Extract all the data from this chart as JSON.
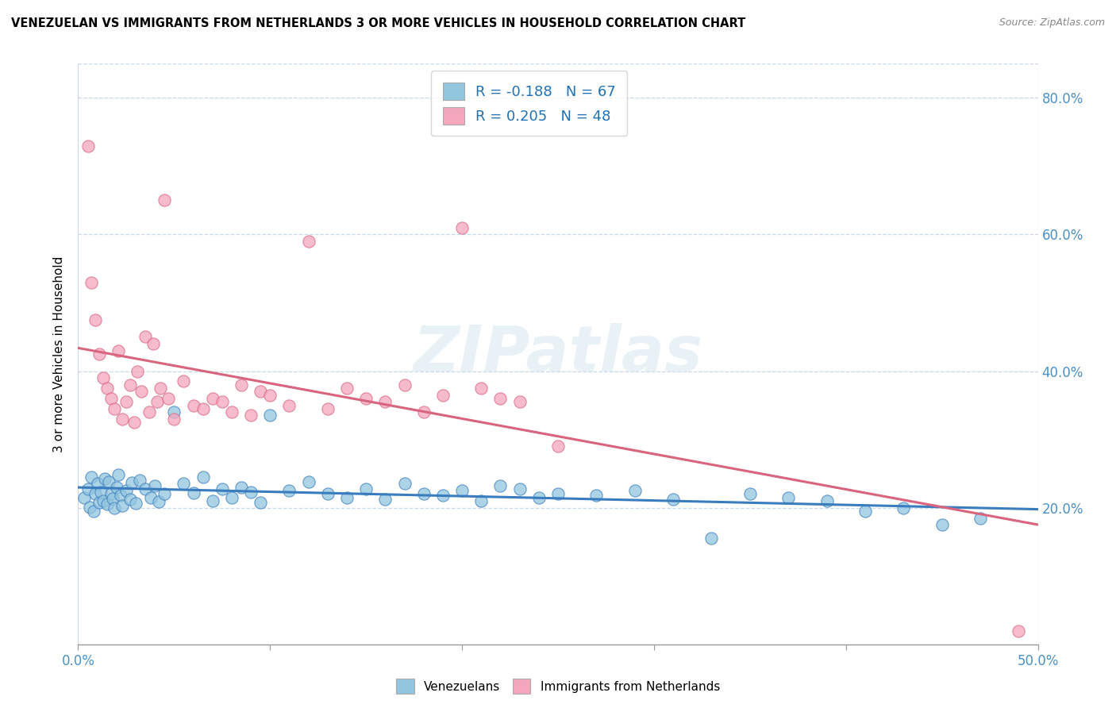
{
  "title": "VENEZUELAN VS IMMIGRANTS FROM NETHERLANDS 3 OR MORE VEHICLES IN HOUSEHOLD CORRELATION CHART",
  "source": "Source: ZipAtlas.com",
  "ylabel": "3 or more Vehicles in Household",
  "legend_label1": "Venezuelans",
  "legend_label2": "Immigrants from Netherlands",
  "R1": -0.188,
  "N1": 67,
  "R2": 0.205,
  "N2": 48,
  "color_blue": "#92c5de",
  "color_pink": "#f4a6bd",
  "line_blue": "#3a7dbf",
  "line_pink": "#d9647e",
  "watermark": "ZIPatlas",
  "blue_points": [
    [
      0.3,
      21.5
    ],
    [
      0.5,
      22.8
    ],
    [
      0.6,
      20.1
    ],
    [
      0.7,
      24.5
    ],
    [
      0.8,
      19.5
    ],
    [
      0.9,
      22.0
    ],
    [
      1.0,
      23.5
    ],
    [
      1.1,
      20.8
    ],
    [
      1.2,
      22.3
    ],
    [
      1.3,
      21.0
    ],
    [
      1.4,
      24.2
    ],
    [
      1.5,
      20.5
    ],
    [
      1.6,
      23.8
    ],
    [
      1.7,
      22.1
    ],
    [
      1.8,
      21.3
    ],
    [
      1.9,
      20.0
    ],
    [
      2.0,
      23.0
    ],
    [
      2.1,
      24.8
    ],
    [
      2.2,
      21.8
    ],
    [
      2.3,
      20.3
    ],
    [
      2.5,
      22.5
    ],
    [
      2.7,
      21.2
    ],
    [
      2.8,
      23.7
    ],
    [
      3.0,
      20.7
    ],
    [
      3.2,
      24.0
    ],
    [
      3.5,
      22.8
    ],
    [
      3.8,
      21.5
    ],
    [
      4.0,
      23.2
    ],
    [
      4.2,
      20.9
    ],
    [
      4.5,
      22.0
    ],
    [
      5.0,
      34.0
    ],
    [
      5.5,
      23.5
    ],
    [
      6.0,
      22.2
    ],
    [
      6.5,
      24.5
    ],
    [
      7.0,
      21.0
    ],
    [
      7.5,
      22.8
    ],
    [
      8.0,
      21.5
    ],
    [
      8.5,
      23.0
    ],
    [
      9.0,
      22.3
    ],
    [
      9.5,
      20.8
    ],
    [
      10.0,
      33.5
    ],
    [
      11.0,
      22.5
    ],
    [
      12.0,
      23.8
    ],
    [
      13.0,
      22.0
    ],
    [
      14.0,
      21.5
    ],
    [
      15.0,
      22.8
    ],
    [
      16.0,
      21.2
    ],
    [
      17.0,
      23.5
    ],
    [
      18.0,
      22.0
    ],
    [
      19.0,
      21.8
    ],
    [
      20.0,
      22.5
    ],
    [
      21.0,
      21.0
    ],
    [
      22.0,
      23.2
    ],
    [
      23.0,
      22.8
    ],
    [
      24.0,
      21.5
    ],
    [
      25.0,
      22.0
    ],
    [
      27.0,
      21.8
    ],
    [
      29.0,
      22.5
    ],
    [
      31.0,
      21.2
    ],
    [
      33.0,
      15.5
    ],
    [
      35.0,
      22.0
    ],
    [
      37.0,
      21.5
    ],
    [
      39.0,
      21.0
    ],
    [
      41.0,
      19.5
    ],
    [
      43.0,
      20.0
    ],
    [
      45.0,
      17.5
    ],
    [
      47.0,
      18.5
    ]
  ],
  "pink_points": [
    [
      0.5,
      73.0
    ],
    [
      0.7,
      53.0
    ],
    [
      0.9,
      47.5
    ],
    [
      1.1,
      42.5
    ],
    [
      1.3,
      39.0
    ],
    [
      1.5,
      37.5
    ],
    [
      1.7,
      36.0
    ],
    [
      1.9,
      34.5
    ],
    [
      2.1,
      43.0
    ],
    [
      2.3,
      33.0
    ],
    [
      2.5,
      35.5
    ],
    [
      2.7,
      38.0
    ],
    [
      2.9,
      32.5
    ],
    [
      3.1,
      40.0
    ],
    [
      3.3,
      37.0
    ],
    [
      3.5,
      45.0
    ],
    [
      3.7,
      34.0
    ],
    [
      3.9,
      44.0
    ],
    [
      4.1,
      35.5
    ],
    [
      4.3,
      37.5
    ],
    [
      4.5,
      65.0
    ],
    [
      4.7,
      36.0
    ],
    [
      5.0,
      33.0
    ],
    [
      5.5,
      38.5
    ],
    [
      6.0,
      35.0
    ],
    [
      6.5,
      34.5
    ],
    [
      7.0,
      36.0
    ],
    [
      7.5,
      35.5
    ],
    [
      8.0,
      34.0
    ],
    [
      8.5,
      38.0
    ],
    [
      9.0,
      33.5
    ],
    [
      9.5,
      37.0
    ],
    [
      10.0,
      36.5
    ],
    [
      11.0,
      35.0
    ],
    [
      12.0,
      59.0
    ],
    [
      13.0,
      34.5
    ],
    [
      14.0,
      37.5
    ],
    [
      15.0,
      36.0
    ],
    [
      16.0,
      35.5
    ],
    [
      17.0,
      38.0
    ],
    [
      18.0,
      34.0
    ],
    [
      19.0,
      36.5
    ],
    [
      20.0,
      61.0
    ],
    [
      21.0,
      37.5
    ],
    [
      22.0,
      36.0
    ],
    [
      23.0,
      35.5
    ],
    [
      25.0,
      29.0
    ],
    [
      49.0,
      2.0
    ]
  ],
  "xlim": [
    0,
    50
  ],
  "ylim": [
    0,
    85
  ],
  "fig_width": 14.06,
  "fig_height": 8.92,
  "dpi": 100
}
